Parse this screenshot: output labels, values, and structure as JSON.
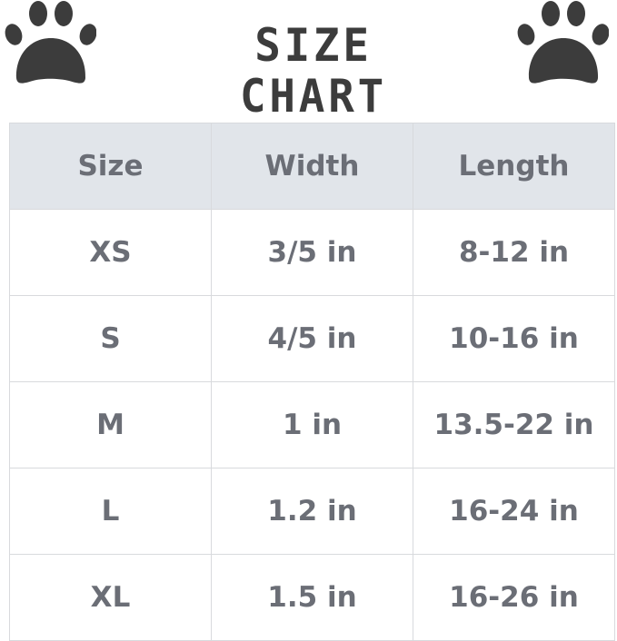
{
  "title": "SIZE CHART",
  "colors": {
    "header_bg": "#e1e5ea",
    "text": "#6b6e76",
    "paw": "#3c3c3c"
  },
  "icons": [
    "paw-print-icon",
    "paw-print-icon"
  ],
  "table": {
    "headers": [
      "Size",
      "Width",
      "Length"
    ],
    "rows": [
      [
        "XS",
        "3/5 in",
        "8-12 in"
      ],
      [
        "S",
        "4/5 in",
        "10-16 in"
      ],
      [
        "M",
        "1 in",
        "13.5-22 in"
      ],
      [
        "L",
        "1.2 in",
        "16-24 in"
      ],
      [
        "XL",
        "1.5 in",
        "16-26 in"
      ]
    ]
  }
}
